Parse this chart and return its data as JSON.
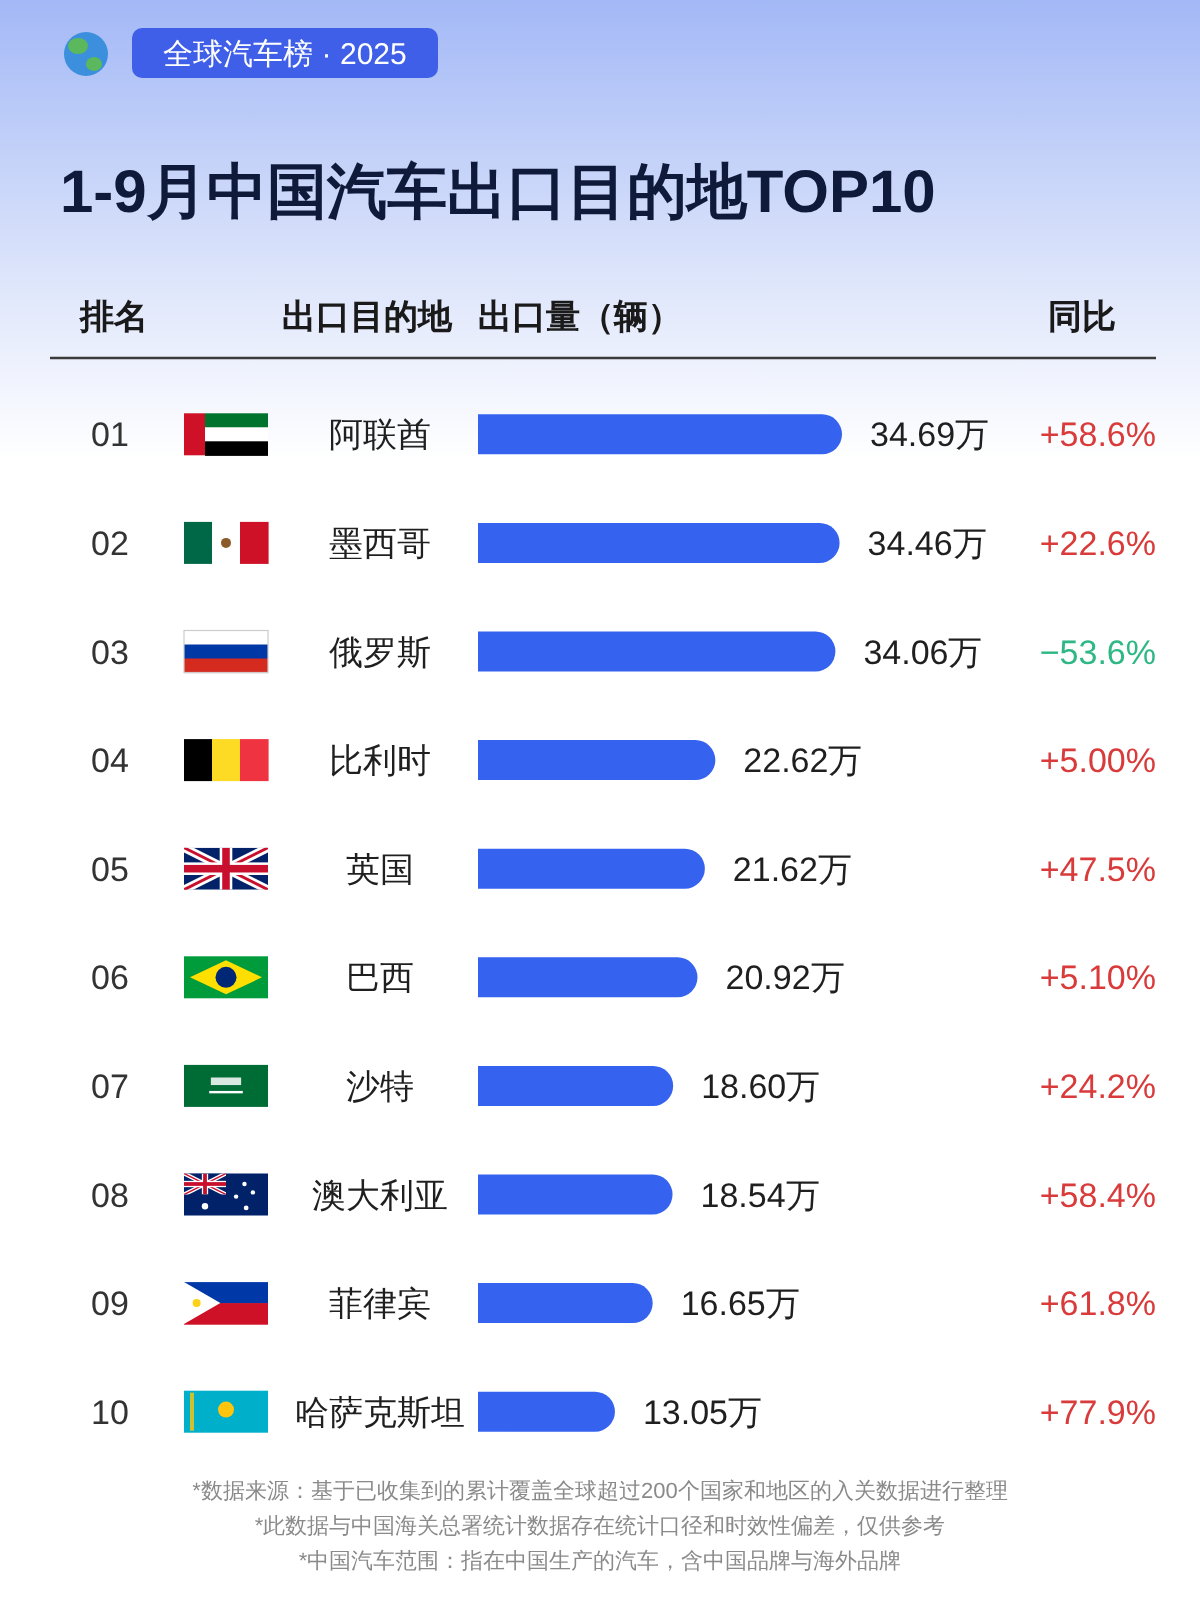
{
  "chart_data": {
    "type": "bar",
    "orientation": "horizontal",
    "title": "1-9月中国汽车出口目的地TOP10",
    "subtitle": "全球汽车榜 · 2025",
    "ylabel": "出口目的地",
    "xlabel": "出口量（辆）",
    "categories": [
      "阿联酋",
      "墨西哥",
      "俄罗斯",
      "比利时",
      "英国",
      "巴西",
      "沙特",
      "澳大利亚",
      "菲律宾",
      "哈萨克斯坦"
    ],
    "values": [
      34.69,
      34.46,
      34.06,
      22.62,
      21.62,
      20.92,
      18.6,
      18.54,
      16.65,
      13.05
    ],
    "color": "#3563f0",
    "value_labels": [
      "34.69万",
      "34.46万",
      "34.06万",
      "22.62万",
      "21.62万",
      "20.92万",
      "18.60万",
      "18.54万",
      "16.65万",
      "13.05万"
    ],
    "annotations": [
      "排名",
      "同比",
      "01",
      "02",
      "03",
      "04",
      "05",
      "06",
      "07",
      "08",
      "09",
      "10",
      "+58.6%",
      "+22.6%",
      "−53.6%",
      "+5.00%",
      "+47.5%",
      "+5.10%",
      "+24.2%",
      "+58.4%",
      "+61.8%",
      "+77.9%",
      "*数据来源：基于已收集到的累计覆盖全球超过200个国家和地区的入关数据进行整理",
      "*此数据与中国海关总署统计数据存在统计口径和时效性偏差，仅供参考",
      "*中国汽车范围：指在中国生产的汽车，含中国品牌与海外品牌"
    ]
  }
}
